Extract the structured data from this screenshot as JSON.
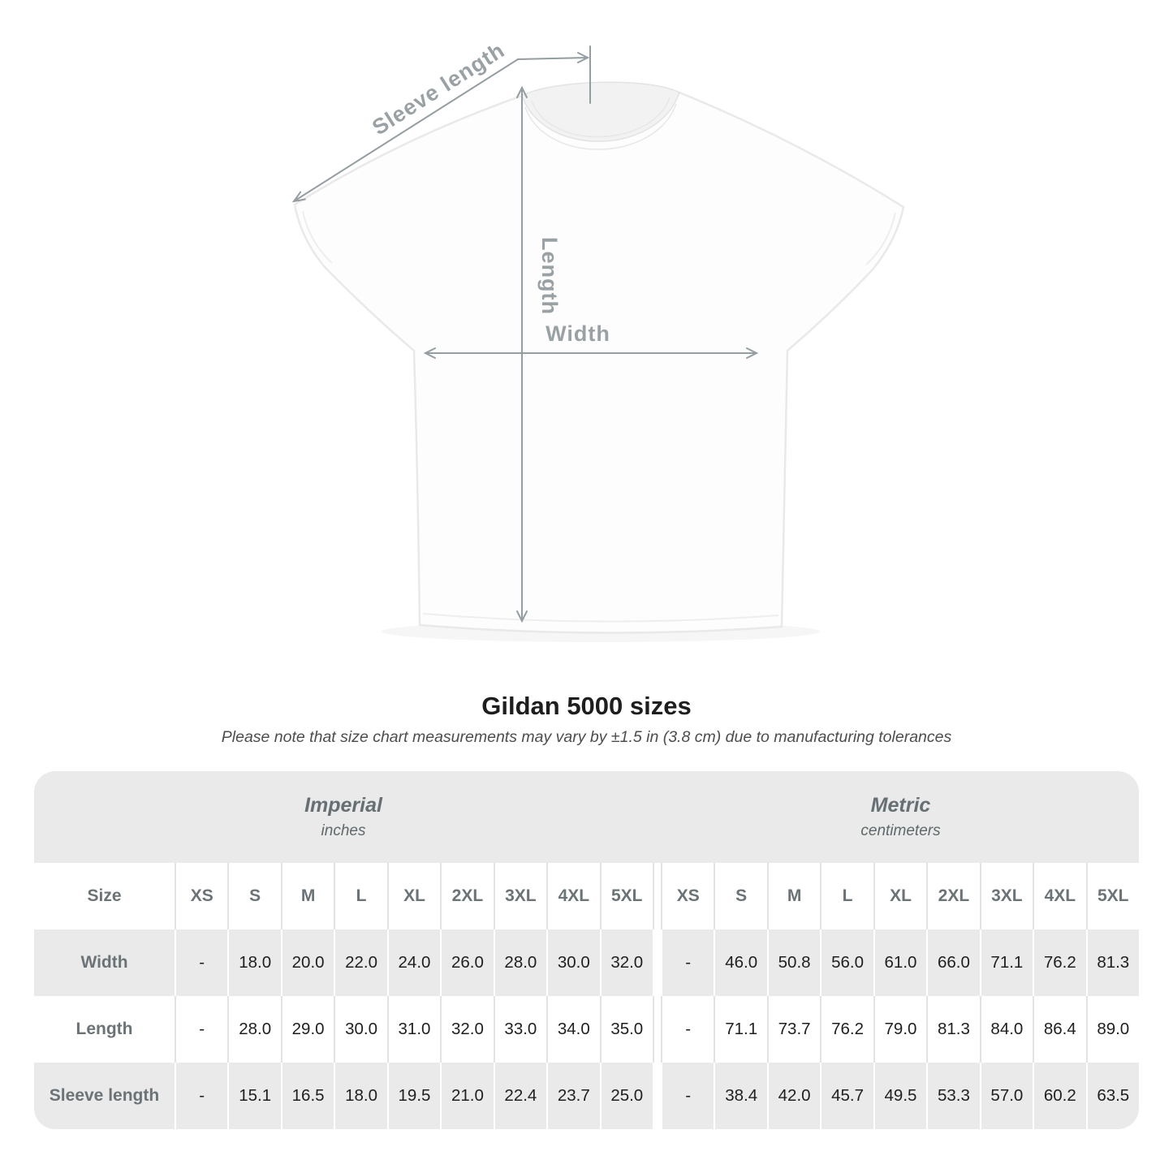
{
  "title": "Gildan 5000 sizes",
  "subtitle": "Please note that size chart measurements may vary by ±1.5 in (3.8 cm) due to manufacturing tolerances",
  "diagram": {
    "labels": {
      "sleeve_length": "Sleeve length",
      "length": "Length",
      "width": "Width"
    }
  },
  "table": {
    "groups": [
      {
        "label": "Imperial",
        "sub": "inches"
      },
      {
        "label": "Metric",
        "sub": "centimeters"
      }
    ],
    "size_header": "Size",
    "sizes": [
      "XS",
      "S",
      "M",
      "L",
      "XL",
      "2XL",
      "3XL",
      "4XL",
      "5XL"
    ],
    "rows": [
      {
        "label": "Width",
        "imperial": [
          "-",
          "18.0",
          "20.0",
          "22.0",
          "24.0",
          "26.0",
          "28.0",
          "30.0",
          "32.0"
        ],
        "metric": [
          "-",
          "46.0",
          "50.8",
          "56.0",
          "61.0",
          "66.0",
          "71.1",
          "76.2",
          "81.3"
        ]
      },
      {
        "label": "Length",
        "imperial": [
          "-",
          "28.0",
          "29.0",
          "30.0",
          "31.0",
          "32.0",
          "33.0",
          "34.0",
          "35.0"
        ],
        "metric": [
          "-",
          "71.1",
          "73.7",
          "76.2",
          "79.0",
          "81.3",
          "84.0",
          "86.4",
          "89.0"
        ]
      },
      {
        "label": "Sleeve length",
        "imperial": [
          "-",
          "15.1",
          "16.5",
          "18.0",
          "19.5",
          "21.0",
          "22.4",
          "23.7",
          "25.0"
        ],
        "metric": [
          "-",
          "38.4",
          "42.0",
          "45.7",
          "49.5",
          "53.3",
          "57.0",
          "60.2",
          "63.5"
        ]
      }
    ]
  },
  "colors": {
    "measure_line": "#949da1",
    "measure_label": "#9aa1a5",
    "band_gray": "#eaeaea",
    "row_gray": "#eaeaea",
    "header_text": "#6b7377",
    "number_text": "#1f1f1f"
  }
}
